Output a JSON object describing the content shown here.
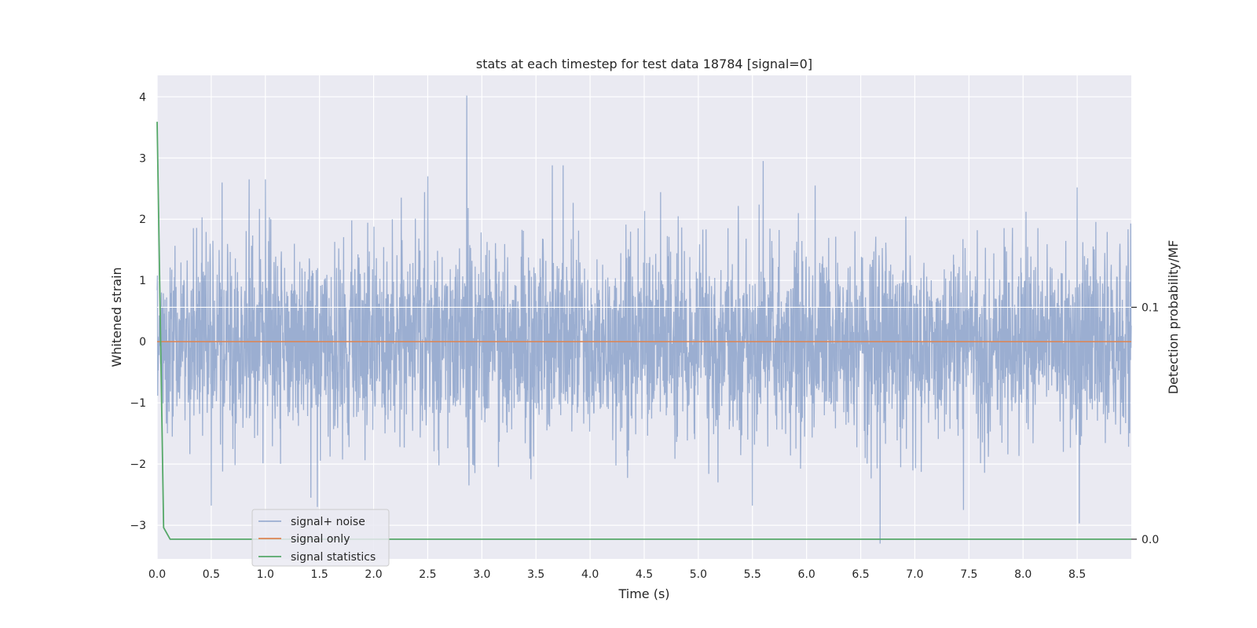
{
  "chart_data": {
    "type": "line",
    "title": "stats at each timestep for test data 18784 [signal=0]",
    "xlabel": "Time (s)",
    "ylabel": "Whitened strain",
    "y2label": "Detection probability/MF",
    "xlim": [
      0.0,
      9.0
    ],
    "ylim": [
      -3.55,
      4.35
    ],
    "y2lim": [
      -0.0085,
      0.2
    ],
    "x_ticks": [
      0.0,
      0.5,
      1.0,
      1.5,
      2.0,
      2.5,
      3.0,
      3.5,
      4.0,
      4.5,
      5.0,
      5.5,
      6.0,
      6.5,
      7.0,
      7.5,
      8.0,
      8.5
    ],
    "x_tick_labels": [
      "0.0",
      "0.5",
      "1.0",
      "1.5",
      "2.0",
      "2.5",
      "3.0",
      "3.5",
      "4.0",
      "4.5",
      "5.0",
      "5.5",
      "6.0",
      "6.5",
      "7.0",
      "7.5",
      "8.0",
      "8.5"
    ],
    "y_ticks": [
      -3,
      -2,
      -1,
      0,
      1,
      2,
      3,
      4
    ],
    "y_tick_labels": [
      "−3",
      "−2",
      "−1",
      "0",
      "1",
      "2",
      "3",
      "4"
    ],
    "y2_ticks": [
      0.0,
      0.1
    ],
    "y2_tick_labels": [
      "0.0",
      "0.1"
    ],
    "grid": true,
    "legend_position": "lower-left",
    "series": [
      {
        "name": "signal+ noise",
        "axis": "left",
        "color": "#4c72b0",
        "opacity": 0.5,
        "kind": "noise",
        "typical_envelope": [
          -1.3,
          1.6
        ],
        "peaks": [
          {
            "x": 2.86,
            "y": 4.02
          },
          {
            "x": 5.6,
            "y": 2.95
          },
          {
            "x": 3.65,
            "y": 2.88
          },
          {
            "x": 3.75,
            "y": 2.88
          },
          {
            "x": 2.5,
            "y": 2.7
          },
          {
            "x": 0.6,
            "y": 2.6
          },
          {
            "x": 6.08,
            "y": 2.55
          },
          {
            "x": 8.5,
            "y": 2.52
          },
          {
            "x": 0.85,
            "y": 2.65
          },
          {
            "x": 1.0,
            "y": 2.65
          },
          {
            "x": 6.68,
            "y": -3.3
          },
          {
            "x": 8.52,
            "y": -2.97
          },
          {
            "x": 1.48,
            "y": -2.7
          },
          {
            "x": 0.5,
            "y": -2.68
          },
          {
            "x": 5.5,
            "y": -2.68
          },
          {
            "x": 7.45,
            "y": -2.75
          },
          {
            "x": 1.42,
            "y": -2.55
          },
          {
            "x": 2.88,
            "y": -2.35
          }
        ]
      },
      {
        "name": "signal only",
        "axis": "left",
        "color": "#dd8452",
        "x": [
          0.0,
          9.0
        ],
        "y": [
          0.0,
          0.0
        ]
      },
      {
        "name": "signal statistics",
        "axis": "right",
        "color": "#55a868",
        "x": [
          0.0,
          0.06,
          0.12,
          9.0
        ],
        "y": [
          0.18,
          0.005,
          0.0,
          0.0
        ]
      }
    ]
  }
}
